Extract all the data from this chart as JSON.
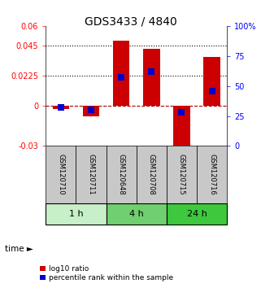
{
  "title": "GDS3433 / 4840",
  "samples": [
    "GSM120710",
    "GSM120711",
    "GSM120648",
    "GSM120708",
    "GSM120715",
    "GSM120716"
  ],
  "log10_ratio": [
    -0.002,
    -0.008,
    0.049,
    0.043,
    -0.04,
    0.037
  ],
  "percentile_rank": [
    32,
    30,
    57,
    62,
    28,
    46
  ],
  "groups": [
    {
      "label": "1 h",
      "indices": [
        0,
        1
      ],
      "color": "#c8f0c8"
    },
    {
      "label": "4 h",
      "indices": [
        2,
        3
      ],
      "color": "#70d070"
    },
    {
      "label": "24 h",
      "indices": [
        4,
        5
      ],
      "color": "#3ec83e"
    }
  ],
  "bar_color": "#cc0000",
  "blue_color": "#0000cc",
  "ylim_left": [
    -0.03,
    0.06
  ],
  "ylim_right": [
    0,
    100
  ],
  "yticks_left": [
    -0.03,
    0,
    0.0225,
    0.045,
    0.06
  ],
  "ytick_labels_left": [
    "-0.03",
    "0",
    "0.0225",
    "0.045",
    "0.06"
  ],
  "yticks_right": [
    0,
    25,
    50,
    75,
    100
  ],
  "ytick_labels_right": [
    "0",
    "25",
    "50",
    "75",
    "100%"
  ],
  "hlines": [
    0.045,
    0.0225
  ],
  "bg_color_sample": "#c8c8c8",
  "legend_log10": "log10 ratio",
  "legend_percentile": "percentile rank within the sample",
  "bar_width": 0.55,
  "blue_square_size": 28
}
